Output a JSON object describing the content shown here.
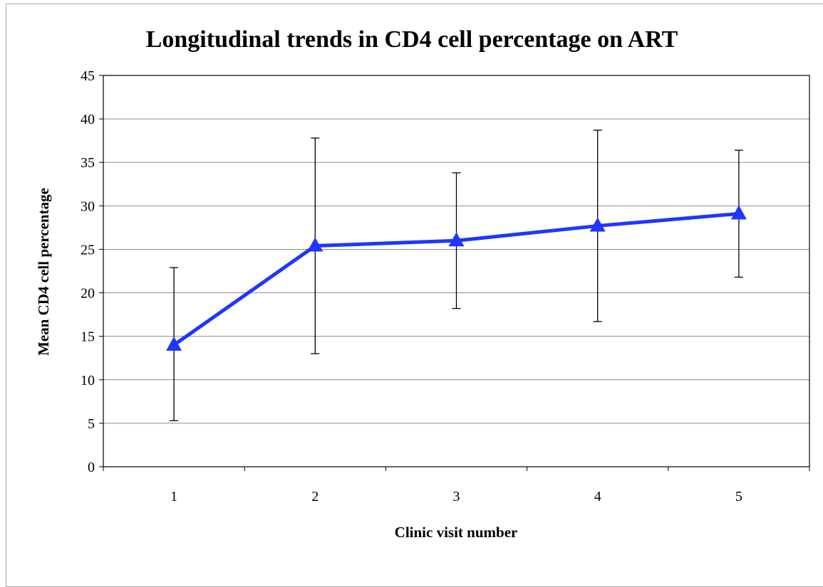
{
  "chart_data": {
    "type": "line",
    "title": "Longitudinal trends in CD4 cell percentage on ART",
    "xlabel": "Clinic visit number",
    "ylabel": "Mean CD4 cell percentage",
    "categories": [
      "1",
      "2",
      "3",
      "4",
      "5"
    ],
    "series": [
      {
        "values": [
          14.0,
          25.4,
          26.0,
          27.7,
          29.1
        ],
        "error_low": [
          5.3,
          13.0,
          18.2,
          16.7,
          21.8
        ],
        "error_high": [
          22.9,
          37.8,
          33.8,
          38.7,
          36.4
        ],
        "color": "#1f36ff",
        "marker": "triangle"
      }
    ],
    "ylim": [
      0,
      45
    ],
    "yticks": [
      "0",
      "5",
      "10",
      "15",
      "20",
      "25",
      "30",
      "35",
      "40",
      "45"
    ],
    "grid": true,
    "legend": "none"
  }
}
